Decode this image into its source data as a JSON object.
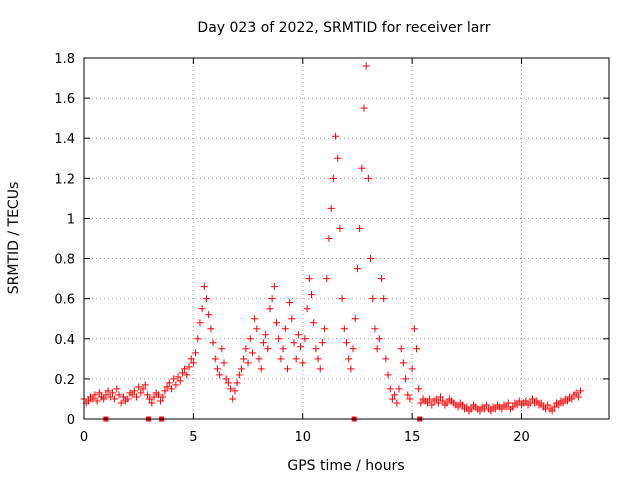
{
  "chart_data": {
    "type": "scatter",
    "title": "Day 023 of 2022, SRMTID for receiver larr",
    "xlabel": "GPS time / hours",
    "ylabel": "SRMTID / TECUs",
    "xlim": [
      0,
      24
    ],
    "ylim": [
      0,
      1.8
    ],
    "grid": true,
    "x_ticks": [
      0,
      5,
      10,
      15,
      20
    ],
    "x_tick_labels": [
      "0",
      "5",
      "10",
      "15",
      "20"
    ],
    "y_ticks": [
      0,
      0.2,
      0.4,
      0.6,
      0.8,
      1.0,
      1.2,
      1.4,
      1.6,
      1.8
    ],
    "y_tick_labels": [
      "0",
      "0.2",
      "0.4",
      "0.6",
      "0.8",
      "1",
      "1.2",
      "1.4",
      "1.6",
      "1.8"
    ],
    "marker_color": "#ff0000",
    "series": [
      {
        "name": "SRMTID",
        "marker": "plus",
        "points": [
          [
            0.0,
            0.1
          ],
          [
            0.1,
            0.08
          ],
          [
            0.2,
            0.09
          ],
          [
            0.3,
            0.11
          ],
          [
            0.4,
            0.1
          ],
          [
            0.5,
            0.12
          ],
          [
            0.6,
            0.09
          ],
          [
            0.7,
            0.13
          ],
          [
            0.8,
            0.11
          ],
          [
            0.9,
            0.1
          ],
          [
            1.0,
            0.12
          ],
          [
            1.1,
            0.14
          ],
          [
            1.2,
            0.11
          ],
          [
            1.3,
            0.13
          ],
          [
            1.4,
            0.1
          ],
          [
            1.5,
            0.15
          ],
          [
            1.6,
            0.12
          ],
          [
            1.7,
            0.08
          ],
          [
            1.8,
            0.11
          ],
          [
            1.9,
            0.09
          ],
          [
            2.0,
            0.1
          ],
          [
            2.1,
            0.13
          ],
          [
            2.2,
            0.12
          ],
          [
            2.3,
            0.14
          ],
          [
            2.4,
            0.11
          ],
          [
            2.5,
            0.16
          ],
          [
            2.6,
            0.13
          ],
          [
            2.7,
            0.15
          ],
          [
            2.8,
            0.17
          ],
          [
            2.9,
            0.12
          ],
          [
            3.0,
            0.1
          ],
          [
            3.1,
            0.08
          ],
          [
            3.2,
            0.11
          ],
          [
            3.3,
            0.13
          ],
          [
            3.4,
            0.12
          ],
          [
            3.5,
            0.09
          ],
          [
            3.6,
            0.11
          ],
          [
            3.7,
            0.14
          ],
          [
            3.8,
            0.16
          ],
          [
            3.9,
            0.18
          ],
          [
            4.0,
            0.15
          ],
          [
            4.1,
            0.2
          ],
          [
            4.2,
            0.17
          ],
          [
            4.3,
            0.21
          ],
          [
            4.4,
            0.19
          ],
          [
            4.5,
            0.23
          ],
          [
            4.6,
            0.25
          ],
          [
            4.7,
            0.22
          ],
          [
            4.8,
            0.26
          ],
          [
            4.9,
            0.3
          ],
          [
            5.0,
            0.28
          ],
          [
            5.1,
            0.33
          ],
          [
            5.2,
            0.4
          ],
          [
            5.3,
            0.48
          ],
          [
            5.4,
            0.55
          ],
          [
            5.5,
            0.66
          ],
          [
            5.6,
            0.6
          ],
          [
            5.7,
            0.52
          ],
          [
            5.8,
            0.45
          ],
          [
            5.9,
            0.38
          ],
          [
            6.0,
            0.3
          ],
          [
            6.1,
            0.25
          ],
          [
            6.2,
            0.22
          ],
          [
            6.3,
            0.35
          ],
          [
            6.4,
            0.28
          ],
          [
            6.5,
            0.2
          ],
          [
            6.6,
            0.18
          ],
          [
            6.7,
            0.15
          ],
          [
            6.8,
            0.1
          ],
          [
            6.9,
            0.14
          ],
          [
            7.0,
            0.18
          ],
          [
            7.1,
            0.22
          ],
          [
            7.2,
            0.25
          ],
          [
            7.3,
            0.3
          ],
          [
            7.4,
            0.35
          ],
          [
            7.5,
            0.28
          ],
          [
            7.6,
            0.4
          ],
          [
            7.7,
            0.33
          ],
          [
            7.8,
            0.5
          ],
          [
            7.9,
            0.45
          ],
          [
            8.0,
            0.3
          ],
          [
            8.1,
            0.25
          ],
          [
            8.2,
            0.38
          ],
          [
            8.3,
            0.42
          ],
          [
            8.4,
            0.35
          ],
          [
            8.5,
            0.55
          ],
          [
            8.6,
            0.6
          ],
          [
            8.7,
            0.66
          ],
          [
            8.8,
            0.48
          ],
          [
            8.9,
            0.4
          ],
          [
            9.0,
            0.3
          ],
          [
            9.1,
            0.35
          ],
          [
            9.2,
            0.45
          ],
          [
            9.3,
            0.25
          ],
          [
            9.4,
            0.58
          ],
          [
            9.5,
            0.5
          ],
          [
            9.6,
            0.38
          ],
          [
            9.7,
            0.3
          ],
          [
            9.8,
            0.42
          ],
          [
            9.9,
            0.36
          ],
          [
            10.0,
            0.28
          ],
          [
            10.1,
            0.4
          ],
          [
            10.2,
            0.55
          ],
          [
            10.3,
            0.7
          ],
          [
            10.4,
            0.62
          ],
          [
            10.5,
            0.48
          ],
          [
            10.6,
            0.35
          ],
          [
            10.7,
            0.3
          ],
          [
            10.8,
            0.25
          ],
          [
            10.9,
            0.38
          ],
          [
            11.0,
            0.45
          ],
          [
            11.1,
            0.7
          ],
          [
            11.2,
            0.9
          ],
          [
            11.3,
            1.05
          ],
          [
            11.4,
            1.2
          ],
          [
            11.5,
            1.41
          ],
          [
            11.6,
            1.3
          ],
          [
            11.7,
            0.95
          ],
          [
            11.8,
            0.6
          ],
          [
            11.9,
            0.45
          ],
          [
            12.0,
            0.38
          ],
          [
            12.1,
            0.3
          ],
          [
            12.2,
            0.25
          ],
          [
            12.3,
            0.35
          ],
          [
            12.4,
            0.5
          ],
          [
            12.5,
            0.75
          ],
          [
            12.6,
            0.95
          ],
          [
            12.7,
            1.25
          ],
          [
            12.8,
            1.55
          ],
          [
            12.9,
            1.76
          ],
          [
            13.0,
            1.2
          ],
          [
            13.1,
            0.8
          ],
          [
            13.2,
            0.6
          ],
          [
            13.3,
            0.45
          ],
          [
            13.4,
            0.35
          ],
          [
            13.5,
            0.4
          ],
          [
            13.6,
            0.7
          ],
          [
            13.7,
            0.6
          ],
          [
            13.8,
            0.3
          ],
          [
            13.9,
            0.22
          ],
          [
            14.0,
            0.15
          ],
          [
            14.1,
            0.1
          ],
          [
            14.2,
            0.12
          ],
          [
            14.3,
            0.08
          ],
          [
            14.4,
            0.15
          ],
          [
            14.5,
            0.35
          ],
          [
            14.6,
            0.28
          ],
          [
            14.7,
            0.2
          ],
          [
            14.8,
            0.12
          ],
          [
            14.9,
            0.1
          ],
          [
            15.0,
            0.25
          ],
          [
            15.1,
            0.45
          ],
          [
            15.2,
            0.35
          ],
          [
            15.3,
            0.15
          ],
          [
            15.4,
            0.08
          ],
          [
            15.5,
            0.1
          ],
          [
            15.6,
            0.09
          ],
          [
            15.7,
            0.08
          ],
          [
            15.8,
            0.1
          ],
          [
            15.9,
            0.07
          ],
          [
            16.0,
            0.09
          ],
          [
            16.1,
            0.1
          ],
          [
            16.2,
            0.08
          ],
          [
            16.3,
            0.11
          ],
          [
            16.4,
            0.09
          ],
          [
            16.5,
            0.07
          ],
          [
            16.6,
            0.08
          ],
          [
            16.7,
            0.1
          ],
          [
            16.8,
            0.09
          ],
          [
            16.9,
            0.08
          ],
          [
            17.0,
            0.07
          ],
          [
            17.1,
            0.06
          ],
          [
            17.2,
            0.08
          ],
          [
            17.3,
            0.07
          ],
          [
            17.4,
            0.05
          ],
          [
            17.5,
            0.06
          ],
          [
            17.6,
            0.04
          ],
          [
            17.7,
            0.05
          ],
          [
            17.8,
            0.07
          ],
          [
            17.9,
            0.06
          ],
          [
            18.0,
            0.05
          ],
          [
            18.1,
            0.04
          ],
          [
            18.2,
            0.06
          ],
          [
            18.3,
            0.05
          ],
          [
            18.4,
            0.07
          ],
          [
            18.5,
            0.05
          ],
          [
            18.6,
            0.04
          ],
          [
            18.7,
            0.06
          ],
          [
            18.8,
            0.05
          ],
          [
            18.9,
            0.07
          ],
          [
            19.0,
            0.06
          ],
          [
            19.1,
            0.05
          ],
          [
            19.2,
            0.07
          ],
          [
            19.3,
            0.06
          ],
          [
            19.4,
            0.08
          ],
          [
            19.5,
            0.05
          ],
          [
            19.6,
            0.06
          ],
          [
            19.7,
            0.08
          ],
          [
            19.8,
            0.07
          ],
          [
            19.9,
            0.09
          ],
          [
            20.0,
            0.07
          ],
          [
            20.1,
            0.08
          ],
          [
            20.2,
            0.09
          ],
          [
            20.3,
            0.07
          ],
          [
            20.4,
            0.08
          ],
          [
            20.5,
            0.1
          ],
          [
            20.6,
            0.08
          ],
          [
            20.7,
            0.09
          ],
          [
            20.8,
            0.07
          ],
          [
            20.9,
            0.08
          ],
          [
            21.0,
            0.06
          ],
          [
            21.1,
            0.05
          ],
          [
            21.2,
            0.07
          ],
          [
            21.3,
            0.05
          ],
          [
            21.4,
            0.04
          ],
          [
            21.5,
            0.06
          ],
          [
            21.6,
            0.08
          ],
          [
            21.7,
            0.07
          ],
          [
            21.8,
            0.09
          ],
          [
            21.9,
            0.08
          ],
          [
            22.0,
            0.1
          ],
          [
            22.1,
            0.09
          ],
          [
            22.2,
            0.11
          ],
          [
            22.3,
            0.1
          ],
          [
            22.4,
            0.12
          ],
          [
            22.5,
            0.13
          ],
          [
            22.6,
            0.11
          ],
          [
            22.7,
            0.14
          ]
        ]
      },
      {
        "name": "gaps",
        "marker": "square",
        "points": [
          [
            1.0,
            0.0
          ],
          [
            2.95,
            0.0
          ],
          [
            3.55,
            0.0
          ],
          [
            12.35,
            0.0
          ],
          [
            15.35,
            0.0
          ]
        ]
      }
    ]
  }
}
